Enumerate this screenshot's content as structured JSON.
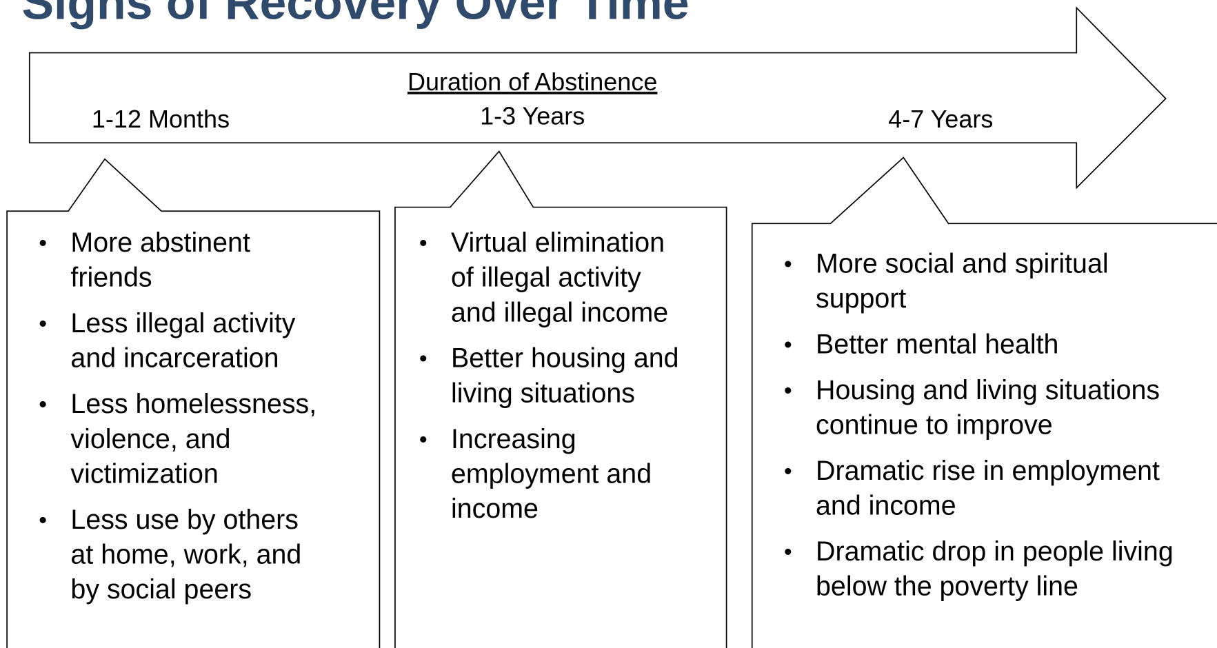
{
  "title": "Signs of Recovery Over Time",
  "axis_label": "Duration of Abstinence",
  "periods": [
    {
      "label": "1-12 Months",
      "items": [
        [
          "More abstinent",
          "friends"
        ],
        [
          "Less illegal activity",
          "and incarceration"
        ],
        [
          "Less homelessness,",
          "violence, and",
          "victimization"
        ],
        [
          "Less use by others",
          "at home, work, and",
          "by social peers"
        ]
      ]
    },
    {
      "label": "1-3 Years",
      "items": [
        [
          "Virtual elimination",
          "of illegal activity",
          "and illegal income"
        ],
        [
          "Better housing and",
          "living situations"
        ],
        [
          "Increasing",
          "employment and",
          "income"
        ]
      ]
    },
    {
      "label": "4-7 Years",
      "items": [
        [
          "More social and spiritual",
          "support"
        ],
        [
          "Better mental health"
        ],
        [
          "Housing and living situations",
          "continue to improve"
        ],
        [
          "Dramatic rise in employment",
          "and income"
        ],
        [
          "Dramatic drop in people living",
          "below the poverty line"
        ]
      ]
    }
  ]
}
